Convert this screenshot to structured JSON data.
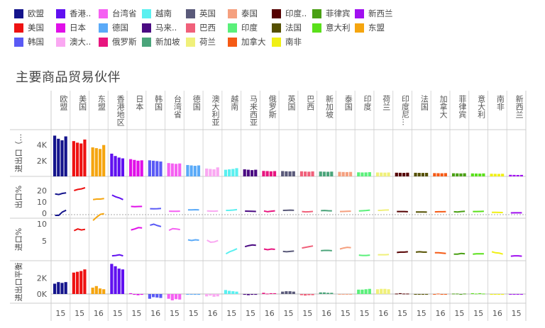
{
  "chart_data": {
    "type": "bar",
    "title": "主要商品贸易伙伴",
    "columns": [
      "欧盟",
      "美国",
      "东盟",
      "香港地区",
      "日本",
      "韩国",
      "台湾省",
      "德国",
      "澳大利亚",
      "越南",
      "马来西亚",
      "俄罗斯",
      "英国",
      "巴西",
      "新加坡",
      "泰国",
      "印度",
      "荷兰",
      "印度尼...",
      "法国",
      "加拿大",
      "菲律宾",
      "意大利",
      "南非",
      "新西兰"
    ],
    "colors": [
      "#14148c",
      "#ee1111",
      "#f5a50f",
      "#6010f0",
      "#e010e8",
      "#5a5af5",
      "#f560f2",
      "#5aaaf8",
      "#faa8f2",
      "#5af0f0",
      "#4a0a82",
      "#e8157f",
      "#5a5a7a",
      "#f0607a",
      "#4aa47a",
      "#f5a07f",
      "#5af07a",
      "#f0f07a",
      "#550000",
      "#555000",
      "#f55a15",
      "#4aa014",
      "#5ae01a",
      "#f0f014",
      "#a010f0"
    ],
    "legend": [
      {
        "label": "欧盟",
        "color": "#14148c"
      },
      {
        "label": "香港..",
        "color": "#6010f0"
      },
      {
        "label": "台湾省",
        "color": "#f560f2"
      },
      {
        "label": "越南",
        "color": "#5af0f0"
      },
      {
        "label": "英国",
        "color": "#5a5a7a"
      },
      {
        "label": "泰国",
        "color": "#f5a07f"
      },
      {
        "label": "印度..",
        "color": "#550000"
      },
      {
        "label": "菲律宾",
        "color": "#4aa014"
      },
      {
        "label": "新西兰",
        "color": "#a010f0"
      },
      {
        "label": "美国",
        "color": "#ee1111"
      },
      {
        "label": "日本",
        "color": "#e010e8"
      },
      {
        "label": "德国",
        "color": "#5aaaf8"
      },
      {
        "label": "马来..",
        "color": "#4a0a82"
      },
      {
        "label": "巴西",
        "color": "#f0607a"
      },
      {
        "label": "印度",
        "color": "#5af07a"
      },
      {
        "label": "法国",
        "color": "#555000"
      },
      {
        "label": "意大利",
        "color": "#5ae01a"
      },
      {
        "label": "东盟",
        "color": "#f5a50f"
      },
      {
        "label": "韩国",
        "color": "#5a5af5"
      },
      {
        "label": "澳大..",
        "color": "#faa8f2"
      },
      {
        "label": "俄罗斯",
        "color": "#e8157f"
      },
      {
        "label": "新加坡",
        "color": "#4aa47a"
      },
      {
        "label": "荷兰",
        "color": "#f0f07a"
      },
      {
        "label": "加拿大",
        "color": "#f55a15"
      },
      {
        "label": "南非",
        "color": "#f0f014"
      }
    ],
    "header_labels": [
      "欧盟",
      "美国",
      "东盟",
      "香港地区",
      "日本",
      "韩国",
      "台湾省",
      "德国",
      "澳大利亚",
      "越南",
      "马来西亚",
      "俄罗斯",
      "英国",
      "巴西",
      "新加坡",
      "泰国",
      "印度",
      "荷兰",
      "印度尼...",
      "法国",
      "加拿大",
      "菲律宾",
      "意大利",
      "南非",
      "新西兰"
    ],
    "panels": [
      {
        "id": "trade",
        "ylabel": "进出口（...",
        "ticks": [
          "4K",
          "2K"
        ]
      },
      {
        "id": "export_share",
        "ylabel": "出口%",
        "ticks": [
          "20",
          "10",
          "0"
        ]
      },
      {
        "id": "import_share",
        "ylabel": "进口%",
        "ticks": [
          "10",
          "5"
        ]
      },
      {
        "id": "balance",
        "ylabel": "进出口平衡",
        "ticks": [
          "2K",
          "0K"
        ]
      }
    ],
    "x_ticks": [
      "15",
      "15",
      "16",
      "15",
      "15",
      "16",
      "15",
      "15",
      "16",
      "15",
      "15",
      "16",
      "15",
      "15",
      "16",
      "15",
      "15",
      "16",
      "15",
      "15",
      "16",
      "15",
      "15",
      "16",
      "15"
    ],
    "trade_values": [
      [
        5200,
        4800,
        4600,
        5100
      ],
      [
        4500,
        4300,
        4200,
        4700
      ],
      [
        3700,
        3600,
        3500,
        4000
      ],
      [
        2900,
        2600,
        2400,
        2300
      ],
      [
        2200,
        2100,
        2000,
        2050
      ],
      [
        2050,
        2000,
        1950,
        1900
      ],
      [
        1700,
        1650,
        1600,
        1650
      ],
      [
        1450,
        1400,
        1350,
        1400
      ],
      [
        1000,
        950,
        900,
        1150
      ],
      [
        850,
        900,
        950,
        1050
      ],
      [
        900,
        850,
        800,
        850
      ],
      [
        700,
        680,
        650,
        680
      ],
      [
        680,
        650,
        640,
        660
      ],
      [
        650,
        620,
        600,
        640
      ],
      [
        620,
        600,
        590,
        610
      ],
      [
        580,
        560,
        550,
        570
      ],
      [
        520,
        500,
        510,
        540
      ],
      [
        500,
        490,
        480,
        500
      ],
      [
        470,
        460,
        450,
        470
      ],
      [
        460,
        450,
        440,
        450
      ],
      [
        420,
        410,
        400,
        420
      ],
      [
        400,
        390,
        380,
        400
      ],
      [
        380,
        370,
        360,
        380
      ],
      [
        340,
        330,
        320,
        340
      ],
      [
        200,
        190,
        180,
        190
      ]
    ],
    "export_share": [
      [
        17.0,
        16.5,
        17.5,
        18.0
      ],
      [
        20.0,
        21.0,
        21.5,
        22.5
      ],
      [
        12.0,
        12.5,
        12.5,
        13.0
      ],
      [
        16.0,
        14.5,
        13.5,
        12.0
      ],
      [
        6.0,
        5.8,
        5.9,
        6.0
      ],
      [
        4.0,
        3.9,
        4.0,
        4.2
      ],
      [
        1.8,
        1.7,
        1.7,
        1.8
      ],
      [
        3.0,
        3.0,
        3.1,
        3.0
      ],
      [
        2.0,
        1.9,
        1.8,
        2.0
      ],
      [
        2.5,
        2.6,
        2.8,
        3.2
      ],
      [
        1.9,
        1.8,
        1.7,
        1.6
      ],
      [
        2.0,
        1.3,
        1.8,
        2.1
      ],
      [
        2.5,
        2.6,
        2.7,
        2.6
      ],
      [
        1.5,
        1.2,
        1.3,
        1.6
      ],
      [
        2.3,
        2.4,
        2.2,
        2.1
      ],
      [
        1.5,
        1.6,
        1.7,
        1.8
      ],
      [
        2.0,
        2.2,
        2.4,
        2.7
      ],
      [
        2.5,
        2.6,
        2.8,
        2.9
      ],
      [
        1.5,
        1.5,
        1.5,
        1.3
      ],
      [
        1.1,
        1.1,
        1.1,
        1.0
      ],
      [
        1.2,
        1.3,
        1.3,
        1.4
      ],
      [
        1.3,
        1.1,
        1.5,
        1.7
      ],
      [
        1.5,
        1.5,
        1.6,
        1.7
      ],
      [
        0.8,
        0.8,
        0.7,
        0.6
      ],
      [
        0.3,
        0.4,
        0.4,
        0.4
      ]
    ],
    "import_share": [
      [
        12.5,
        12.5,
        13.5,
        14.0
      ],
      [
        8.0,
        8.5,
        8.2,
        8.4
      ],
      [
        11.0,
        12.0,
        12.8,
        13.0
      ],
      [
        0.6,
        0.7,
        0.9,
        0.6
      ],
      [
        8.2,
        8.5,
        8.9,
        8.8
      ],
      [
        9.6,
        9.9,
        9.5,
        9.2
      ],
      [
        8.1,
        8.6,
        8.5,
        8.3
      ],
      [
        5.3,
        5.1,
        5.3,
        5.2
      ],
      [
        5.2,
        4.6,
        4.7,
        5.1
      ],
      [
        1.2,
        1.8,
        2.2,
        2.7
      ],
      [
        3.3,
        3.6,
        3.8,
        3.7
      ],
      [
        2.6,
        2.4,
        2.6,
        2.5
      ],
      [
        1.9,
        1.8,
        1.9,
        2.0
      ],
      [
        2.9,
        3.1,
        3.3,
        3.5
      ],
      [
        2.1,
        2.2,
        2.2,
        2.1
      ],
      [
        2.6,
        2.9,
        3.1,
        3.0
      ],
      [
        0.8,
        0.7,
        0.7,
        0.8
      ],
      [
        0.9,
        0.9,
        0.9,
        1.0
      ],
      [
        1.6,
        1.7,
        1.7,
        1.8
      ],
      [
        1.7,
        1.8,
        1.7,
        1.7
      ],
      [
        1.5,
        1.5,
        1.4,
        1.3
      ],
      [
        1.1,
        1.1,
        1.3,
        1.2
      ],
      [
        1.1,
        1.2,
        1.2,
        1.2
      ],
      [
        1.8,
        1.5,
        1.4,
        1.1
      ],
      [
        0.5,
        0.6,
        0.6,
        0.5
      ]
    ],
    "balance": [
      [
        1300,
        1500,
        1400,
        1500
      ],
      [
        2700,
        2800,
        2900,
        3100
      ],
      [
        800,
        1000,
        700,
        600
      ],
      [
        3800,
        3500,
        3200,
        3100
      ],
      [
        100,
        -100,
        -150,
        -100
      ],
      [
        -600,
        -400,
        -450,
        -500
      ],
      [
        -600,
        -800,
        -650,
        -700
      ],
      [
        -50,
        -50,
        -100,
        -100
      ],
      [
        -300,
        -200,
        -350,
        -300
      ],
      [
        500,
        400,
        350,
        300
      ],
      [
        -100,
        -150,
        -100,
        -100
      ],
      [
        150,
        50,
        100,
        100
      ],
      [
        300,
        350,
        350,
        300
      ],
      [
        -150,
        -200,
        -150,
        -150
      ],
      [
        200,
        200,
        150,
        150
      ],
      [
        -50,
        -50,
        -50,
        -50
      ],
      [
        550,
        550,
        600,
        650
      ],
      [
        600,
        650,
        650,
        600
      ],
      [
        50,
        100,
        50,
        50
      ],
      [
        -50,
        -50,
        -50,
        -50
      ],
      [
        -50,
        50,
        -50,
        -50
      ],
      [
        50,
        50,
        -50,
        50
      ],
      [
        100,
        50,
        100,
        50
      ],
      [
        -100,
        -100,
        -100,
        -100
      ],
      [
        -50,
        -50,
        -50,
        -50
      ]
    ]
  }
}
